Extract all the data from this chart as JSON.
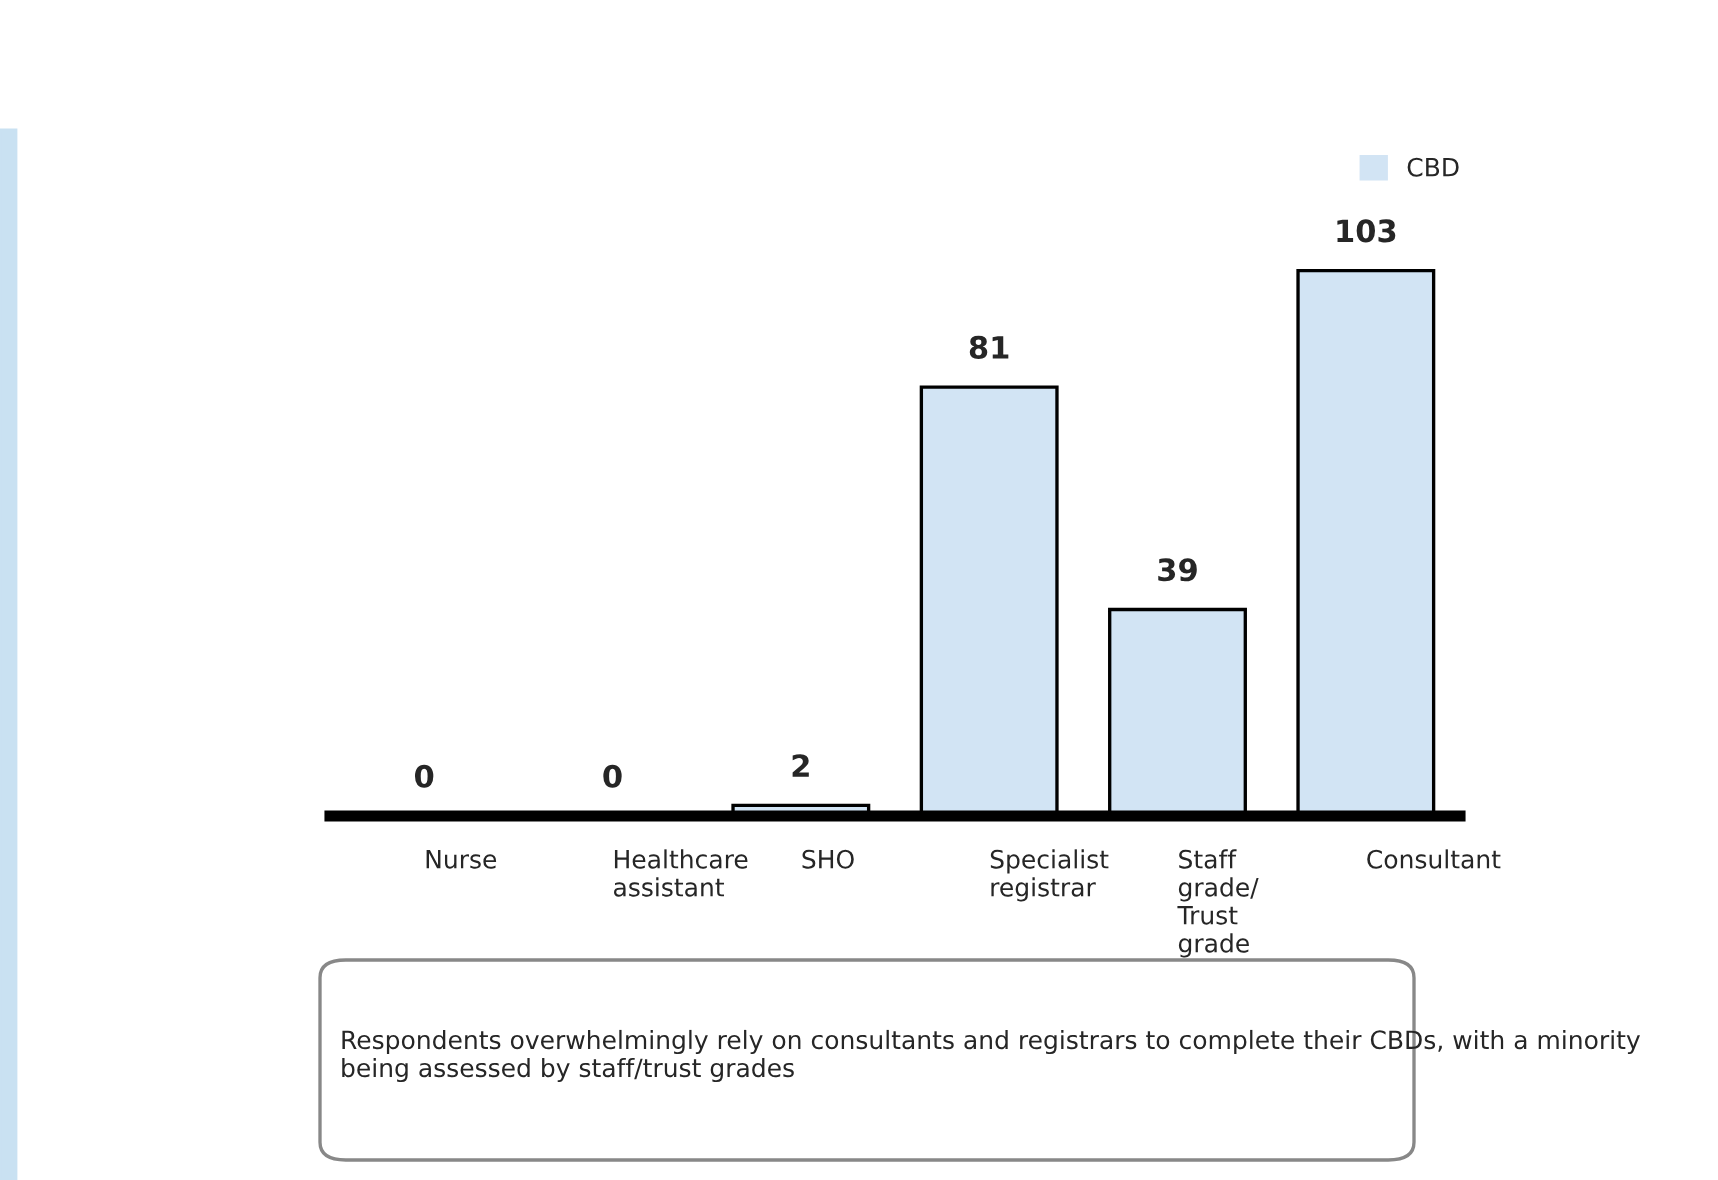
{
  "chart_data": {
    "type": "bar",
    "categories": [
      "Nurse",
      "Healthcare assistant",
      "SHO",
      "Specialist registrar",
      "Staff grade/ Trust grade",
      "Consultant"
    ],
    "series": [
      {
        "name": "CBD",
        "color": "#d2e4f4",
        "values": [
          0,
          0,
          2,
          81,
          39,
          103
        ]
      }
    ],
    "data_labels": true,
    "legend": "top right",
    "grid": false,
    "annotations": [
      "Respondents overwhelmingly rely on consultants and registrars to complete their CBDs, with a minority being assessed by staff/trust grades"
    ]
  }
}
